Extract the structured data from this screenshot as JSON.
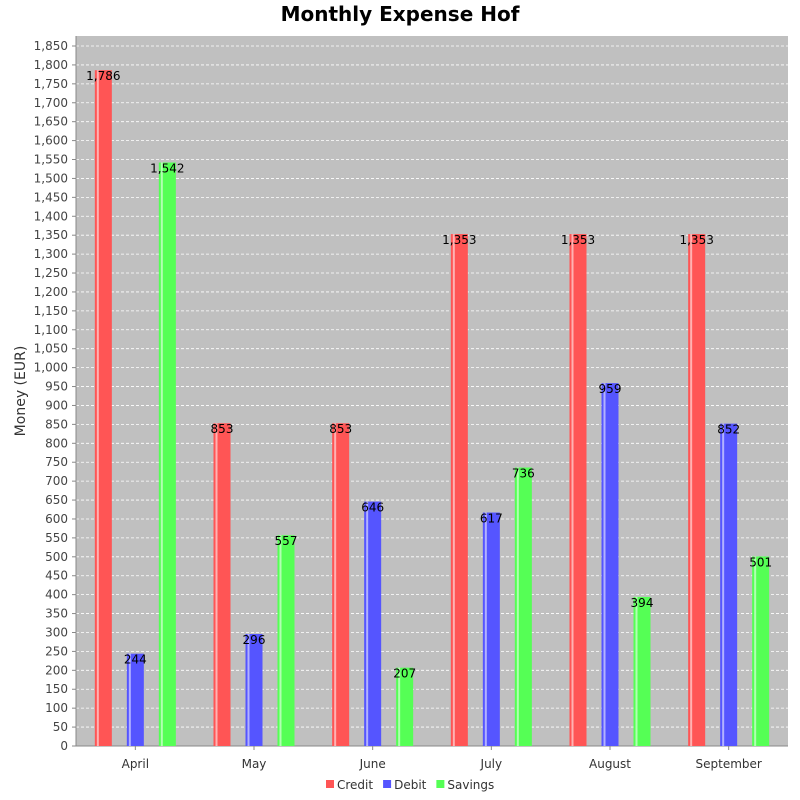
{
  "chart_data": {
    "type": "bar",
    "title": "Monthly Expense Hof",
    "xlabel": "",
    "ylabel": "Money (EUR)",
    "ylim": [
      0,
      1850
    ],
    "ytick_step": 50,
    "grid": true,
    "legend_position": "bottom",
    "categories": [
      "April",
      "May",
      "June",
      "July",
      "August",
      "September"
    ],
    "series": [
      {
        "name": "Credit",
        "color": "#ff5555",
        "values": [
          1786,
          853,
          853,
          1353,
          1353,
          1353
        ]
      },
      {
        "name": "Debit",
        "color": "#5555ff",
        "values": [
          244,
          296,
          646,
          617,
          959,
          852
        ]
      },
      {
        "name": "Savings",
        "color": "#55ff55",
        "values": [
          1542,
          557,
          207,
          736,
          394,
          501
        ]
      }
    ]
  }
}
